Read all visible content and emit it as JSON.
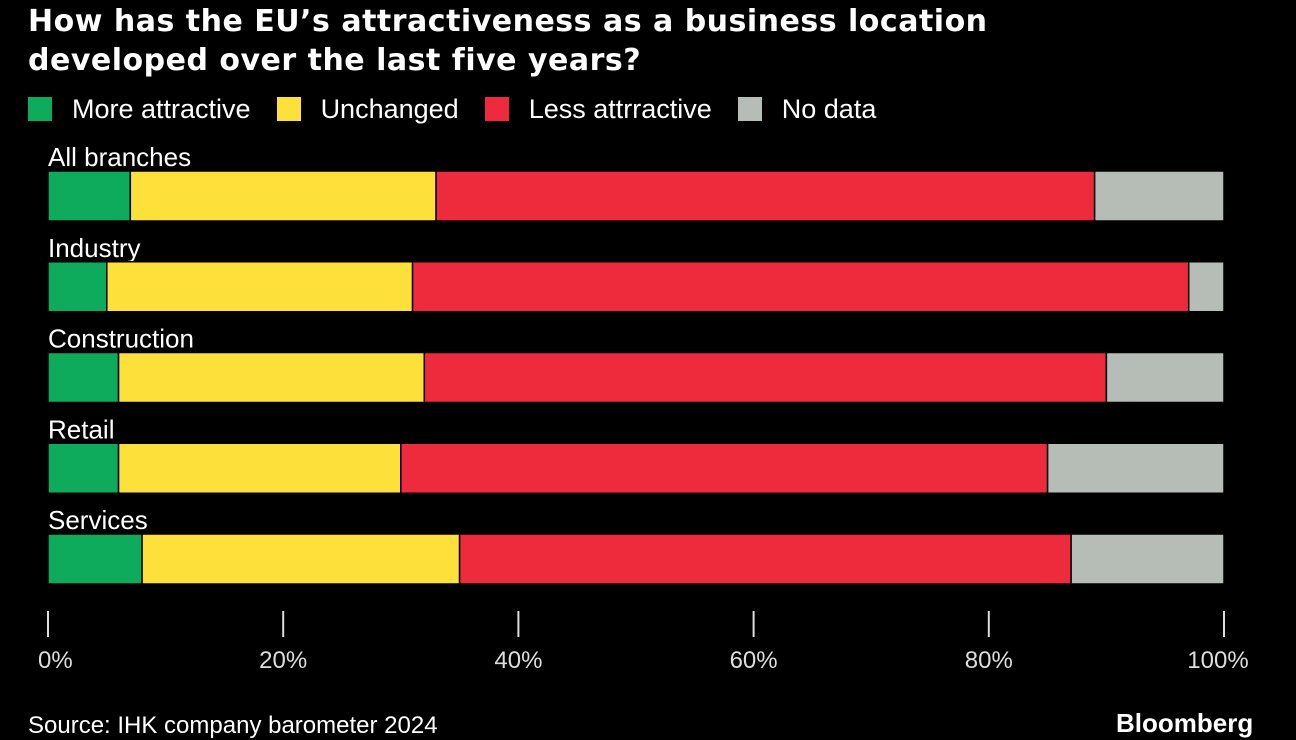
{
  "header": {
    "title_line1": "How has the EU’s attractiveness as a business location",
    "title_line2": "developed over the last five years?"
  },
  "colors": {
    "background": "#000000",
    "more_attractive": "#0eab5d",
    "unchanged": "#fde13a",
    "less_attractive": "#ee2b3c",
    "no_data": "#b5bdb6",
    "axis": "#dddddd"
  },
  "chart_data": {
    "type": "bar",
    "orientation": "horizontal",
    "stacked": true,
    "title": "How has the EU’s attractiveness as a business location developed over the last five years?",
    "categories": [
      "All branches",
      "Industry",
      "Construction",
      "Retail",
      "Services"
    ],
    "series": [
      {
        "name": "More attractive",
        "color": "#0eab5d",
        "values": [
          7,
          5,
          6,
          6,
          8
        ]
      },
      {
        "name": "Unchanged",
        "color": "#fde13a",
        "values": [
          26,
          26,
          26,
          24,
          27
        ]
      },
      {
        "name": "Less attrractive",
        "color": "#ee2b3c",
        "values": [
          56,
          66,
          58,
          55,
          52
        ]
      },
      {
        "name": "No data",
        "color": "#b5bdb6",
        "values": [
          11,
          3,
          10,
          15,
          13
        ]
      }
    ],
    "xlim": [
      0,
      100
    ],
    "xticks": [
      0,
      20,
      40,
      60,
      80,
      100
    ],
    "xtick_labels": [
      "0%",
      "20%",
      "40%",
      "60%",
      "80%",
      "100%"
    ],
    "legend_position": "top-left",
    "grid": false
  },
  "footer": {
    "source": "Source: IHK company barometer 2024",
    "brand": "Bloomberg"
  }
}
